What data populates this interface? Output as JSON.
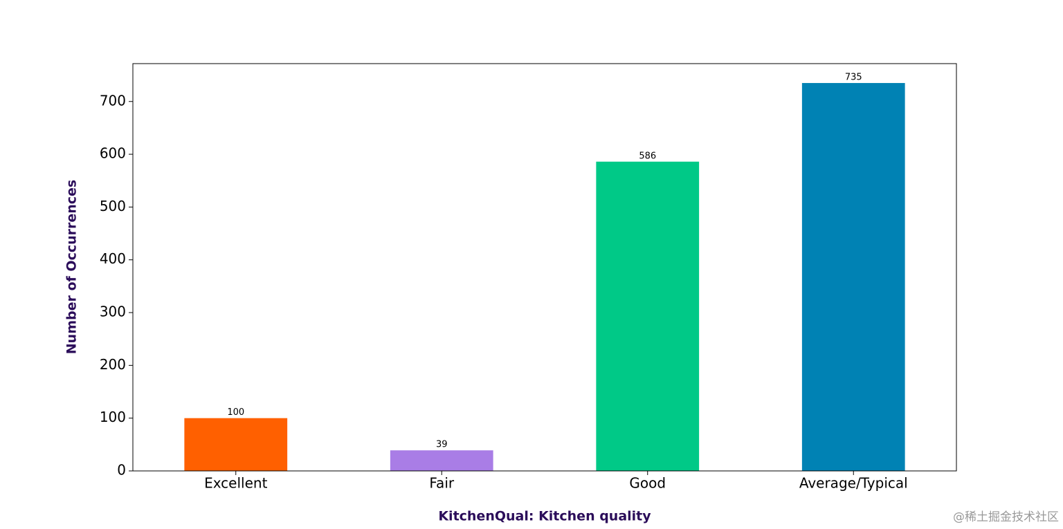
{
  "chart_data": {
    "type": "bar",
    "x_label": "KitchenQual: Kitchen quality",
    "y_label": "Number of Occurrences",
    "categories": [
      "Excellent",
      "Fair",
      "Good",
      "Average/Typical"
    ],
    "values": [
      100,
      39,
      586,
      735
    ],
    "colors": [
      "#ff6000",
      "#a97de6",
      "#00c987",
      "#0082b4"
    ],
    "ylim": [
      0,
      771.75
    ],
    "yticks": [
      0,
      100,
      200,
      300,
      400,
      500,
      600,
      700
    ],
    "grid": false
  },
  "watermark": "@稀土掘金技术社区"
}
